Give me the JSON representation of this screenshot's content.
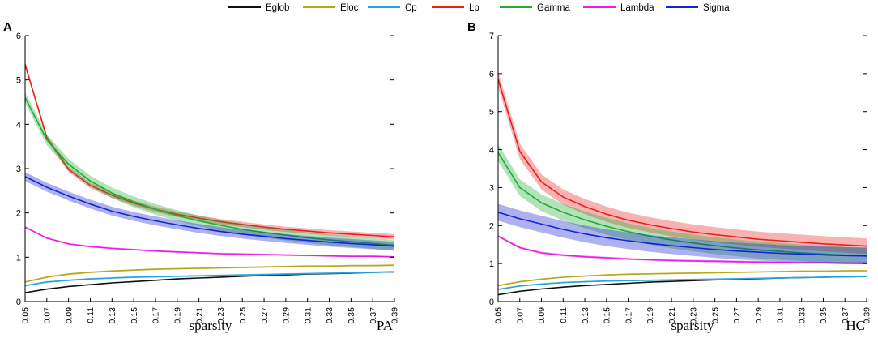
{
  "legend": [
    {
      "name": "Eglob",
      "color": "#111111"
    },
    {
      "name": "Eloc",
      "color": "#b5a81c"
    },
    {
      "name": "Cp",
      "color": "#2aa3dd"
    },
    {
      "name": "Lp",
      "color": "#e8211f"
    },
    {
      "name": "Gamma",
      "color": "#1fad35"
    },
    {
      "name": "Lambda",
      "color": "#e81ce8"
    },
    {
      "name": "Sigma",
      "color": "#1523d2"
    }
  ],
  "chart_data": [
    {
      "type": "line",
      "panel": "A",
      "tag": "PA",
      "title": "",
      "xlabel": "sparsity",
      "ylabel": "",
      "xlim": [
        0.05,
        0.39
      ],
      "ylim": [
        0,
        6
      ],
      "yticks": [
        0,
        1,
        2,
        3,
        4,
        5,
        6
      ],
      "xticks": [
        "0.05",
        "0.07",
        "0.09",
        "0.11",
        "0.13",
        "0.15",
        "0.17",
        "0.19",
        "0.21",
        "0.23",
        "0.25",
        "0.27",
        "0.29",
        "0.31",
        "0.33",
        "0.35",
        "0.37",
        "0.39"
      ],
      "x": [
        0.05,
        0.07,
        0.09,
        0.11,
        0.13,
        0.15,
        0.17,
        0.19,
        0.21,
        0.23,
        0.25,
        0.27,
        0.29,
        0.31,
        0.33,
        0.35,
        0.37,
        0.39
      ],
      "series": [
        {
          "name": "Eglob",
          "values": [
            0.2,
            0.28,
            0.34,
            0.38,
            0.42,
            0.45,
            0.48,
            0.51,
            0.53,
            0.55,
            0.57,
            0.59,
            0.6,
            0.62,
            0.63,
            0.64,
            0.66,
            0.67
          ],
          "band": 0.01
        },
        {
          "name": "Eloc",
          "values": [
            0.44,
            0.55,
            0.62,
            0.66,
            0.69,
            0.71,
            0.73,
            0.74,
            0.75,
            0.76,
            0.77,
            0.78,
            0.79,
            0.8,
            0.8,
            0.81,
            0.81,
            0.82
          ],
          "band": 0.02
        },
        {
          "name": "Cp",
          "values": [
            0.36,
            0.44,
            0.48,
            0.51,
            0.53,
            0.55,
            0.56,
            0.57,
            0.58,
            0.59,
            0.6,
            0.61,
            0.62,
            0.63,
            0.64,
            0.65,
            0.66,
            0.67
          ],
          "band": 0.02
        },
        {
          "name": "Lp",
          "values": [
            5.35,
            3.7,
            2.98,
            2.62,
            2.4,
            2.22,
            2.08,
            1.97,
            1.88,
            1.8,
            1.74,
            1.68,
            1.63,
            1.59,
            1.55,
            1.52,
            1.49,
            1.46
          ],
          "band": 0.06
        },
        {
          "name": "Gamma",
          "values": [
            4.6,
            3.65,
            3.1,
            2.72,
            2.45,
            2.25,
            2.08,
            1.94,
            1.82,
            1.72,
            1.63,
            1.56,
            1.5,
            1.44,
            1.39,
            1.35,
            1.31,
            1.27
          ],
          "band": 0.12
        },
        {
          "name": "Lambda",
          "values": [
            1.68,
            1.43,
            1.3,
            1.24,
            1.2,
            1.17,
            1.14,
            1.12,
            1.1,
            1.08,
            1.07,
            1.06,
            1.05,
            1.04,
            1.03,
            1.02,
            1.02,
            1.01
          ],
          "band": 0.02
        },
        {
          "name": "Sigma",
          "values": [
            2.82,
            2.58,
            2.38,
            2.2,
            2.04,
            1.92,
            1.82,
            1.73,
            1.65,
            1.58,
            1.52,
            1.47,
            1.42,
            1.38,
            1.34,
            1.31,
            1.28,
            1.25
          ],
          "band": 0.1
        }
      ]
    },
    {
      "type": "line",
      "panel": "B",
      "tag": "HC",
      "title": "",
      "xlabel": "sparsity",
      "ylabel": "",
      "xlim": [
        0.05,
        0.39
      ],
      "ylim": [
        0,
        7
      ],
      "yticks": [
        0,
        1,
        2,
        3,
        4,
        5,
        6,
        7
      ],
      "xticks": [
        "0.05",
        "0.07",
        "0.09",
        "0.11",
        "0.13",
        "0.15",
        "0.17",
        "0.19",
        "0.21",
        "0.23",
        "0.25",
        "0.27",
        "0.29",
        "0.31",
        "0.33",
        "0.35",
        "0.37",
        "0.39"
      ],
      "x": [
        0.05,
        0.07,
        0.09,
        0.11,
        0.13,
        0.15,
        0.17,
        0.19,
        0.21,
        0.23,
        0.25,
        0.27,
        0.29,
        0.31,
        0.33,
        0.35,
        0.37,
        0.39
      ],
      "series": [
        {
          "name": "Eglob",
          "values": [
            0.18,
            0.27,
            0.33,
            0.38,
            0.42,
            0.45,
            0.48,
            0.51,
            0.53,
            0.55,
            0.57,
            0.59,
            0.6,
            0.62,
            0.63,
            0.64,
            0.65,
            0.66
          ],
          "band": 0.01
        },
        {
          "name": "Eloc",
          "values": [
            0.42,
            0.52,
            0.59,
            0.64,
            0.67,
            0.7,
            0.72,
            0.73,
            0.74,
            0.75,
            0.76,
            0.77,
            0.78,
            0.79,
            0.8,
            0.8,
            0.81,
            0.81
          ],
          "band": 0.02
        },
        {
          "name": "Cp",
          "values": [
            0.32,
            0.41,
            0.46,
            0.5,
            0.52,
            0.54,
            0.55,
            0.56,
            0.57,
            0.58,
            0.59,
            0.6,
            0.61,
            0.62,
            0.63,
            0.64,
            0.65,
            0.66
          ],
          "band": 0.02
        },
        {
          "name": "Lp",
          "values": [
            5.85,
            3.95,
            3.15,
            2.75,
            2.5,
            2.3,
            2.14,
            2.02,
            1.92,
            1.83,
            1.76,
            1.7,
            1.64,
            1.6,
            1.56,
            1.52,
            1.49,
            1.46
          ],
          "band": 0.2
        },
        {
          "name": "Gamma",
          "values": [
            3.92,
            3.0,
            2.6,
            2.35,
            2.15,
            1.98,
            1.84,
            1.72,
            1.62,
            1.54,
            1.47,
            1.41,
            1.36,
            1.32,
            1.28,
            1.25,
            1.22,
            1.2
          ],
          "band": 0.22
        },
        {
          "name": "Lambda",
          "values": [
            1.72,
            1.42,
            1.28,
            1.22,
            1.18,
            1.15,
            1.12,
            1.1,
            1.08,
            1.07,
            1.06,
            1.05,
            1.04,
            1.03,
            1.02,
            1.02,
            1.01,
            1.01
          ],
          "band": 0.03
        },
        {
          "name": "Sigma",
          "values": [
            2.35,
            2.18,
            2.04,
            1.9,
            1.78,
            1.68,
            1.6,
            1.53,
            1.47,
            1.42,
            1.37,
            1.33,
            1.3,
            1.27,
            1.25,
            1.23,
            1.21,
            1.2
          ],
          "band": 0.22
        }
      ]
    }
  ]
}
